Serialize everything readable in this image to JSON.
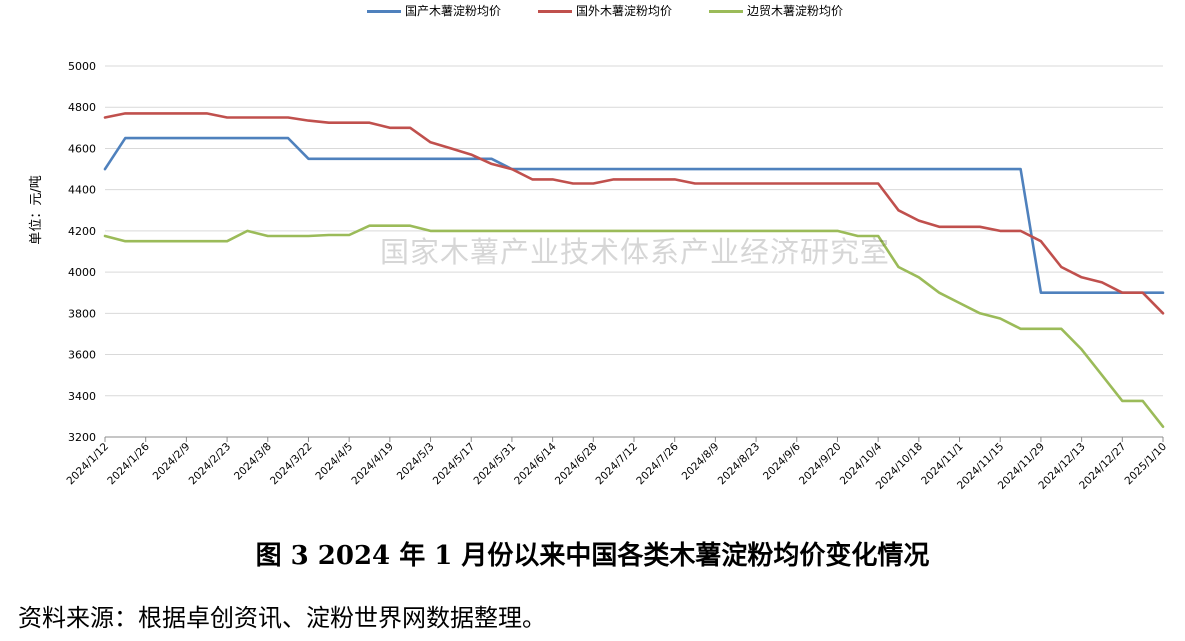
{
  "chart_data": {
    "type": "line",
    "title": "",
    "xlabel": "",
    "ylabel": "单位：元/吨",
    "ylim": [
      3200,
      5000
    ],
    "yticks": [
      3200,
      3400,
      3600,
      3800,
      4000,
      4200,
      4400,
      4600,
      4800,
      5000
    ],
    "grid": true,
    "legend_position": "top",
    "watermark": "国家木薯产业技术体系产业经济研究室",
    "x": [
      "2024/1/12",
      "2024/1/19",
      "2024/1/26",
      "2024/2/2",
      "2024/2/9",
      "2024/2/16",
      "2024/2/23",
      "2024/3/1",
      "2024/3/8",
      "2024/3/15",
      "2024/3/22",
      "2024/3/29",
      "2024/4/5",
      "2024/4/12",
      "2024/4/19",
      "2024/4/26",
      "2024/5/3",
      "2024/5/10",
      "2024/5/17",
      "2024/5/24",
      "2024/5/31",
      "2024/6/7",
      "2024/6/14",
      "2024/6/21",
      "2024/6/28",
      "2024/7/5",
      "2024/7/12",
      "2024/7/19",
      "2024/7/26",
      "2024/8/2",
      "2024/8/9",
      "2024/8/16",
      "2024/8/23",
      "2024/8/30",
      "2024/9/6",
      "2024/9/13",
      "2024/9/20",
      "2024/9/27",
      "2024/10/4",
      "2024/10/11",
      "2024/10/18",
      "2024/10/25",
      "2024/11/1",
      "2024/11/8",
      "2024/11/15",
      "2024/11/22",
      "2024/11/29",
      "2024/12/6",
      "2024/12/13",
      "2024/12/20",
      "2024/12/27",
      "2025/1/3",
      "2025/1/10"
    ],
    "x_tick_labels": [
      "2024/1/12",
      "2024/1/26",
      "2024/2/9",
      "2024/2/23",
      "2024/3/8",
      "2024/3/22",
      "2024/4/5",
      "2024/4/19",
      "2024/5/3",
      "2024/5/17",
      "2024/5/31",
      "2024/6/14",
      "2024/6/28",
      "2024/7/12",
      "2024/7/26",
      "2024/8/9",
      "2024/8/23",
      "2024/9/6",
      "2024/9/20",
      "2024/10/4",
      "2024/10/18",
      "2024/11/1",
      "2024/11/15",
      "2024/11/29",
      "2024/12/13",
      "2024/12/27",
      "2025/1/10"
    ],
    "series": [
      {
        "name": "国产木薯淀粉均价",
        "color": "#4f81bd",
        "values": [
          4500,
          4650,
          4650,
          4650,
          4650,
          4650,
          4650,
          4650,
          4650,
          4650,
          4550,
          4550,
          4550,
          4550,
          4550,
          4550,
          4550,
          4550,
          4550,
          4550,
          4500,
          4500,
          4500,
          4500,
          4500,
          4500,
          4500,
          4500,
          4500,
          4500,
          4500,
          4500,
          4500,
          4500,
          4500,
          4500,
          4500,
          4500,
          4500,
          4500,
          4500,
          4500,
          4500,
          4500,
          4500,
          4500,
          3900,
          3900,
          3900,
          3900,
          3900,
          3900,
          3900
        ]
      },
      {
        "name": "国外木薯淀粉均价",
        "color": "#c0504d",
        "values": [
          4750,
          4770,
          4770,
          4770,
          4770,
          4770,
          4750,
          4750,
          4750,
          4750,
          4735,
          4725,
          4725,
          4725,
          4700,
          4700,
          4630,
          4600,
          4570,
          4525,
          4500,
          4450,
          4450,
          4430,
          4430,
          4450,
          4450,
          4450,
          4450,
          4430,
          4430,
          4430,
          4430,
          4430,
          4430,
          4430,
          4430,
          4430,
          4430,
          4300,
          4250,
          4220,
          4220,
          4220,
          4200,
          4200,
          4150,
          4025,
          3975,
          3950,
          3900,
          3900,
          3800
        ]
      },
      {
        "name": "边贸木薯淀粉均价",
        "color": "#9bbb59",
        "values": [
          4175,
          4150,
          4150,
          4150,
          4150,
          4150,
          4150,
          4200,
          4175,
          4175,
          4175,
          4180,
          4180,
          4225,
          4225,
          4225,
          4200,
          4200,
          4200,
          4200,
          4200,
          4200,
          4200,
          4200,
          4200,
          4200,
          4200,
          4200,
          4200,
          4200,
          4200,
          4200,
          4200,
          4200,
          4200,
          4200,
          4200,
          4175,
          4175,
          4025,
          3975,
          3900,
          3850,
          3800,
          3775,
          3725,
          3725,
          3725,
          3625,
          3500,
          3375,
          3375,
          3250
        ]
      }
    ]
  },
  "caption": "图 3    2024 年 1 月份以来中国各类木薯淀粉均价变化情况",
  "source": "资料来源：根据卓创资讯、淀粉世界网数据整理。"
}
